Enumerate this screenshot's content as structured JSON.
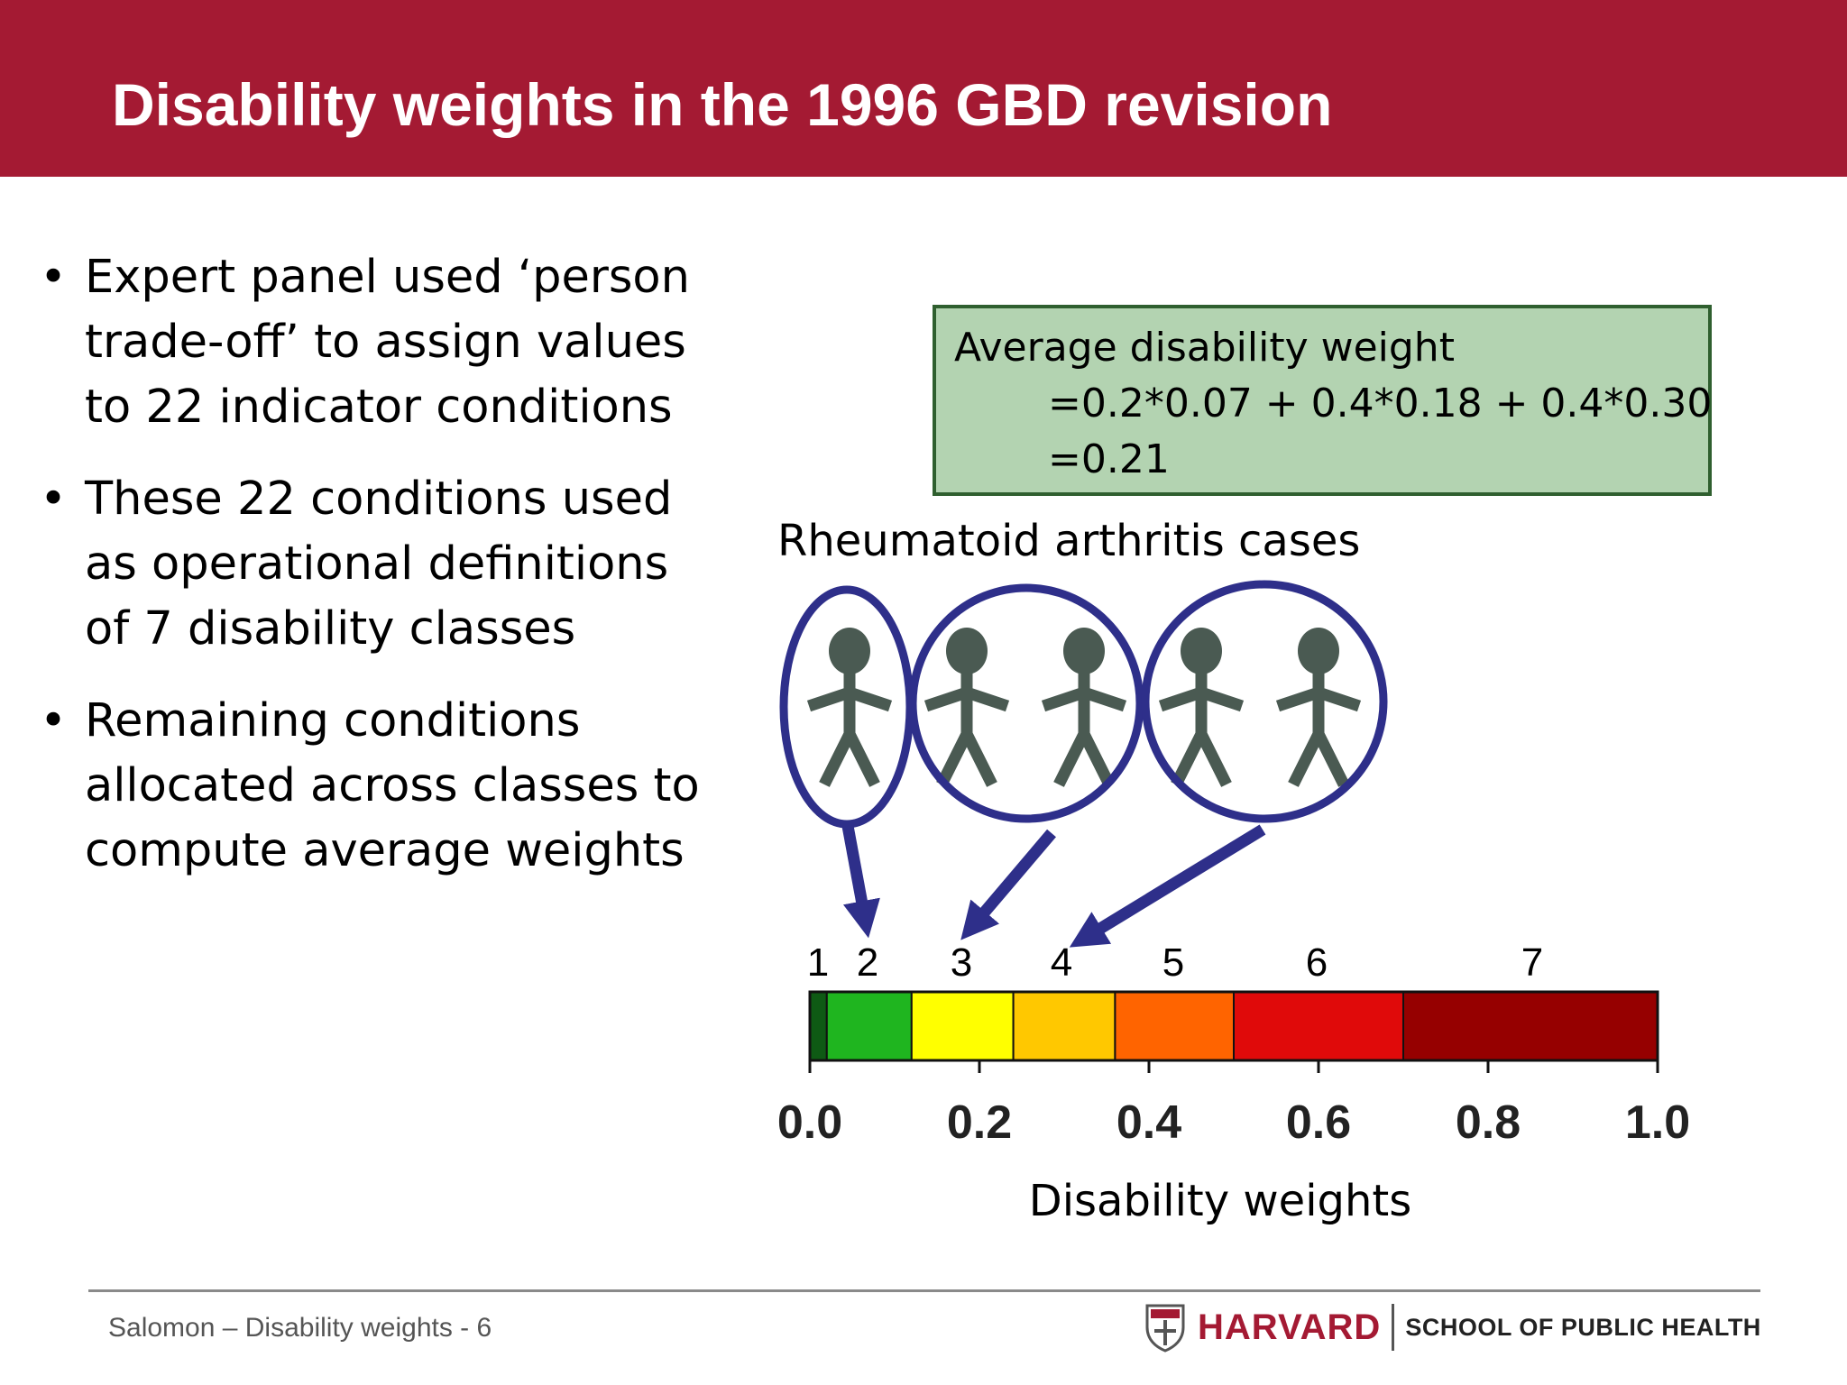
{
  "title": "Disability weights in the 1996 GBD revision",
  "bullets": [
    {
      "lines": [
        "Expert panel used ‘person",
        "trade-off’ to assign values",
        "to 22 indicator conditions"
      ]
    },
    {
      "lines": [
        "These 22 conditions used",
        "as operational definitions",
        "of 7 disability classes"
      ]
    },
    {
      "lines": [
        "Remaining conditions",
        "allocated across classes to",
        "compute average weights"
      ]
    }
  ],
  "formula": {
    "title": "Average disability weight",
    "line1": "=0.2*0.07 + 0.4*0.18 + 0.4*0.30",
    "line2": "=0.21"
  },
  "ra_label": "Rheumatoid arthritis cases",
  "person_icon": "person-icon",
  "class_scale": {
    "classes": [
      {
        "label": "1",
        "from": 0.0,
        "to": 0.02,
        "color": "#0e5a14"
      },
      {
        "label": "2",
        "from": 0.02,
        "to": 0.12,
        "color": "#1fb51f"
      },
      {
        "label": "3",
        "from": 0.12,
        "to": 0.24,
        "color": "#ffff00"
      },
      {
        "label": "4",
        "from": 0.24,
        "to": 0.36,
        "color": "#ffc800"
      },
      {
        "label": "5",
        "from": 0.36,
        "to": 0.5,
        "color": "#ff6400"
      },
      {
        "label": "6",
        "from": 0.5,
        "to": 0.7,
        "color": "#e00a0a"
      },
      {
        "label": "7",
        "from": 0.7,
        "to": 1.0,
        "color": "#960000"
      }
    ],
    "ticks": [
      "0.0",
      "0.2",
      "0.4",
      "0.6",
      "0.8",
      "1.0"
    ],
    "axis_label": "Disability weights"
  },
  "groups": [
    {
      "people": 1,
      "target_class": "2",
      "share": 0.2
    },
    {
      "people": 2,
      "target_class": "3",
      "share": 0.4
    },
    {
      "people": 2,
      "target_class": "4",
      "share": 0.4
    }
  ],
  "colors": {
    "header": "#a41a33",
    "ring": "#2e2f8a",
    "person": "#4a5a52",
    "formula_bg": "#b3d3b1"
  },
  "footer": {
    "text": "Salomon – Disability weights - 6",
    "logo_word": "HARVARD",
    "logo_school": "SCHOOL OF PUBLIC HEALTH",
    "logo_icon": "harvard-shield-icon"
  }
}
